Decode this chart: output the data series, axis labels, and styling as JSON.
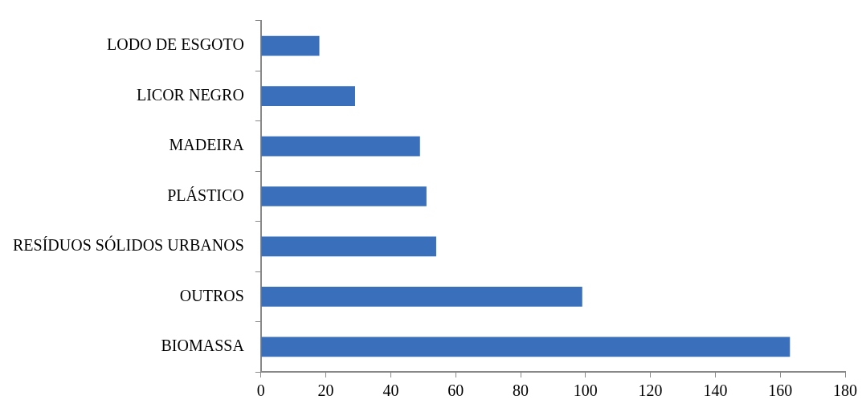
{
  "chart_data": {
    "type": "bar",
    "orientation": "horizontal",
    "categories": [
      "LODO DE ESGOTO",
      "LICOR NEGRO",
      "MADEIRA",
      "PLÁSTICO",
      "RESÍDUOS SÓLIDOS URBANOS",
      "OUTROS",
      "BIOMASSA"
    ],
    "values": [
      18,
      29,
      49,
      51,
      54,
      99,
      163
    ],
    "color": "#3a70bb",
    "xlim": [
      0,
      180
    ],
    "xticks": [
      0,
      20,
      40,
      60,
      80,
      100,
      120,
      140,
      160,
      180
    ],
    "grid": false,
    "legend": false
  }
}
